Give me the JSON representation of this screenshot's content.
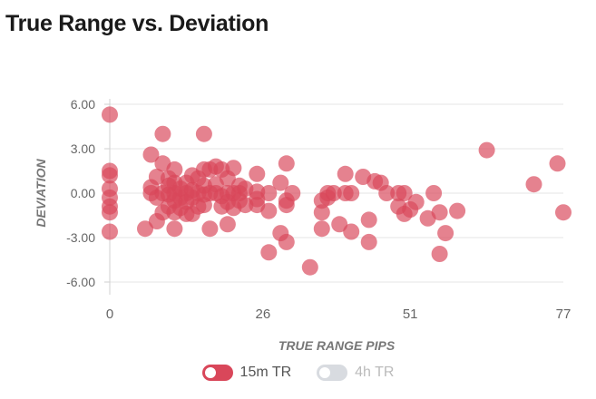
{
  "page": {
    "title": "True Range vs. Deviation"
  },
  "chart_data": {
    "type": "scatter",
    "xlabel": "TRUE RANGE PIPS",
    "ylabel": "DEVIATION",
    "xlim": [
      0,
      77
    ],
    "ylim": [
      -6,
      6
    ],
    "x_ticks": [
      "0",
      "26",
      "51",
      "77"
    ],
    "y_ticks": [
      "6.00",
      "3.00",
      "0.00",
      "-3.00",
      "-6.00"
    ],
    "grid": true,
    "legend_position": "bottom",
    "series": [
      {
        "name": "15m TR",
        "color": "#d9475a",
        "visible": true,
        "points": [
          [
            0,
            5.3
          ],
          [
            0,
            1.5
          ],
          [
            0,
            1.2
          ],
          [
            0,
            0.3
          ],
          [
            0,
            -0.3
          ],
          [
            0,
            -0.9
          ],
          [
            0,
            -1.3
          ],
          [
            0,
            -2.6
          ],
          [
            6,
            -2.4
          ],
          [
            7,
            2.6
          ],
          [
            7,
            0.4
          ],
          [
            7,
            0.0
          ],
          [
            8,
            1.1
          ],
          [
            8,
            -0.3
          ],
          [
            8,
            -1.9
          ],
          [
            9,
            4.0
          ],
          [
            9,
            2.0
          ],
          [
            9,
            0.0
          ],
          [
            9,
            -1.3
          ],
          [
            10,
            1.0
          ],
          [
            10,
            0.5
          ],
          [
            10,
            -0.1
          ],
          [
            10,
            -0.9
          ],
          [
            11,
            1.6
          ],
          [
            11,
            0.7
          ],
          [
            11,
            0.0
          ],
          [
            11,
            -0.5
          ],
          [
            11,
            -1.3
          ],
          [
            11,
            -2.4
          ],
          [
            12,
            0.3
          ],
          [
            12,
            -0.3
          ],
          [
            12,
            -1.0
          ],
          [
            13,
            0.7
          ],
          [
            13,
            0.0
          ],
          [
            13,
            -0.6
          ],
          [
            13,
            -1.4
          ],
          [
            14,
            1.2
          ],
          [
            14,
            0.2
          ],
          [
            14,
            -0.3
          ],
          [
            14,
            -1.4
          ],
          [
            15,
            1.0
          ],
          [
            15,
            0.0
          ],
          [
            15,
            -0.9
          ],
          [
            16,
            4.0
          ],
          [
            16,
            1.6
          ],
          [
            16,
            0.5
          ],
          [
            16,
            -0.1
          ],
          [
            16,
            -0.8
          ],
          [
            17,
            1.6
          ],
          [
            17,
            0.0
          ],
          [
            17,
            -2.4
          ],
          [
            18,
            1.8
          ],
          [
            18,
            0.6
          ],
          [
            18,
            0.0
          ],
          [
            19,
            1.6
          ],
          [
            19,
            -0.2
          ],
          [
            19,
            -0.9
          ],
          [
            20,
            1.0
          ],
          [
            20,
            0.0
          ],
          [
            20,
            -0.6
          ],
          [
            20,
            -2.1
          ],
          [
            21,
            1.7
          ],
          [
            21,
            0.0
          ],
          [
            21,
            -1.0
          ],
          [
            22,
            0.5
          ],
          [
            22,
            0.0
          ],
          [
            22,
            -0.5
          ],
          [
            23,
            0.3
          ],
          [
            23,
            -0.8
          ],
          [
            25,
            1.3
          ],
          [
            25,
            0.1
          ],
          [
            25,
            -0.4
          ],
          [
            25,
            -0.8
          ],
          [
            27,
            0.0
          ],
          [
            27,
            -1.2
          ],
          [
            27,
            -4.0
          ],
          [
            29,
            0.7
          ],
          [
            29,
            -2.7
          ],
          [
            30,
            2.0
          ],
          [
            30,
            -0.5
          ],
          [
            30,
            -0.8
          ],
          [
            30,
            -3.3
          ],
          [
            31,
            0.0
          ],
          [
            34,
            -5.0
          ],
          [
            36,
            -0.5
          ],
          [
            36,
            -1.3
          ],
          [
            36,
            -2.4
          ],
          [
            37,
            0.0
          ],
          [
            37,
            -0.3
          ],
          [
            38,
            0.0
          ],
          [
            39,
            -2.1
          ],
          [
            40,
            1.3
          ],
          [
            40,
            0.0
          ],
          [
            41,
            0.0
          ],
          [
            41,
            -2.6
          ],
          [
            43,
            1.1
          ],
          [
            44,
            -1.8
          ],
          [
            44,
            -3.3
          ],
          [
            45,
            0.8
          ],
          [
            46,
            0.7
          ],
          [
            47,
            0.0
          ],
          [
            49,
            0.0
          ],
          [
            49,
            -0.9
          ],
          [
            50,
            0.0
          ],
          [
            50,
            -1.4
          ],
          [
            51,
            -1.1
          ],
          [
            52,
            -0.6
          ],
          [
            54,
            -1.7
          ],
          [
            55,
            0.0
          ],
          [
            56,
            -1.3
          ],
          [
            56,
            -4.1
          ],
          [
            57,
            -2.7
          ],
          [
            59,
            -1.2
          ],
          [
            64,
            2.9
          ],
          [
            72,
            0.6
          ],
          [
            76,
            2.0
          ],
          [
            77,
            -1.3
          ]
        ]
      },
      {
        "name": "4h TR",
        "color": "#d8dbe0",
        "visible": false,
        "points": []
      }
    ]
  }
}
